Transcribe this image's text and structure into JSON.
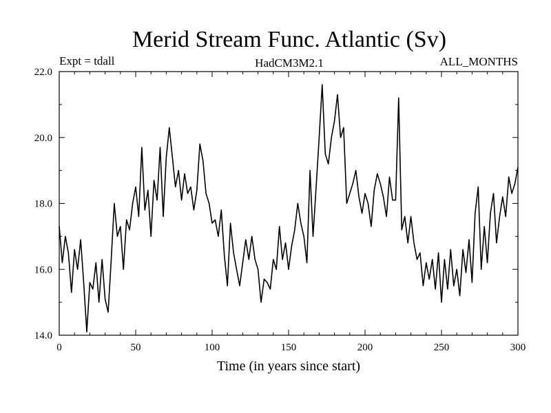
{
  "chart_data": {
    "type": "line",
    "title": "Merid Stream Func. Atlantic (Sv)",
    "annotation_left": "Expt = tdall",
    "annotation_center": "HadCM3M2.1",
    "annotation_right": "ALL_MONTHS",
    "xlabel": "Time (in years since start)",
    "ylabel": "",
    "xlim": [
      0,
      300
    ],
    "ylim": [
      14.0,
      22.0
    ],
    "x_ticks": [
      0,
      50,
      100,
      150,
      200,
      250,
      300
    ],
    "x_tick_labels": [
      "0",
      "50",
      "100",
      "150",
      "200",
      "250",
      "300"
    ],
    "y_ticks": [
      14.0,
      16.0,
      18.0,
      20.0,
      22.0
    ],
    "y_tick_labels": [
      "14.0",
      "16.0",
      "18.0",
      "20.0",
      "22.0"
    ],
    "grid": false,
    "series": [
      {
        "name": "Merid Stream Func. Atlantic",
        "color": "#000000",
        "x": [
          0,
          2,
          4,
          6,
          8,
          10,
          12,
          14,
          16,
          18,
          20,
          22,
          24,
          26,
          28,
          30,
          32,
          34,
          36,
          38,
          40,
          42,
          44,
          46,
          48,
          50,
          52,
          54,
          56,
          58,
          60,
          62,
          64,
          66,
          68,
          70,
          72,
          74,
          76,
          78,
          80,
          82,
          84,
          86,
          88,
          90,
          92,
          94,
          96,
          98,
          100,
          102,
          104,
          106,
          108,
          110,
          112,
          114,
          116,
          118,
          120,
          122,
          124,
          126,
          128,
          130,
          132,
          134,
          136,
          138,
          140,
          142,
          144,
          146,
          148,
          150,
          152,
          154,
          156,
          158,
          160,
          162,
          164,
          166,
          168,
          170,
          172,
          174,
          176,
          178,
          180,
          182,
          184,
          186,
          188,
          190,
          192,
          194,
          196,
          198,
          200,
          202,
          204,
          206,
          208,
          210,
          212,
          214,
          216,
          218,
          220,
          222,
          224,
          226,
          228,
          230,
          232,
          234,
          236,
          238,
          240,
          242,
          244,
          246,
          248,
          250,
          252,
          254,
          256,
          258,
          260,
          262,
          264,
          266,
          268,
          270,
          272,
          274,
          276,
          278,
          280,
          282,
          284,
          286,
          288,
          290,
          292,
          294,
          296,
          298,
          300
        ],
        "y": [
          17.3,
          16.2,
          17.0,
          16.5,
          15.3,
          16.6,
          16.0,
          16.9,
          15.6,
          14.1,
          15.6,
          15.4,
          16.2,
          15.0,
          16.3,
          15.1,
          14.7,
          16.3,
          18.0,
          17.0,
          17.3,
          16.0,
          17.5,
          17.2,
          18.0,
          18.5,
          17.6,
          19.7,
          17.8,
          18.4,
          17.0,
          18.7,
          18.1,
          19.7,
          17.6,
          19.4,
          20.3,
          19.4,
          18.5,
          19.0,
          18.1,
          18.9,
          18.3,
          18.5,
          17.8,
          18.4,
          19.8,
          19.3,
          18.3,
          18.0,
          17.4,
          17.5,
          17.0,
          17.8,
          16.4,
          15.5,
          17.4,
          16.5,
          16.0,
          15.5,
          16.2,
          16.9,
          16.3,
          17.0,
          16.3,
          16.0,
          15.0,
          15.7,
          15.6,
          15.4,
          16.3,
          16.0,
          17.3,
          16.3,
          16.8,
          16.0,
          16.7,
          17.2,
          18.0,
          17.4,
          17.0,
          16.2,
          19.0,
          17.0,
          18.5,
          20.0,
          21.6,
          19.5,
          19.2,
          20.0,
          20.5,
          21.3,
          20.0,
          20.3,
          18.0,
          18.3,
          18.6,
          19.0,
          18.2,
          17.7,
          18.3,
          18.0,
          17.3,
          18.4,
          18.9,
          18.6,
          18.2,
          17.6,
          18.8,
          18.1,
          18.1,
          21.2,
          17.2,
          17.6,
          16.8,
          17.6,
          16.8,
          16.3,
          16.5,
          15.5,
          16.2,
          15.7,
          16.3,
          15.4,
          16.5,
          15.0,
          16.3,
          15.4,
          16.6,
          15.5,
          16.0,
          15.2,
          16.6,
          15.9,
          16.9,
          15.6,
          17.7,
          18.5,
          16.0,
          17.3,
          16.2,
          17.7,
          18.3,
          16.8,
          17.6,
          18.2,
          17.6,
          18.8,
          18.3,
          18.6,
          19.1
        ]
      }
    ]
  }
}
